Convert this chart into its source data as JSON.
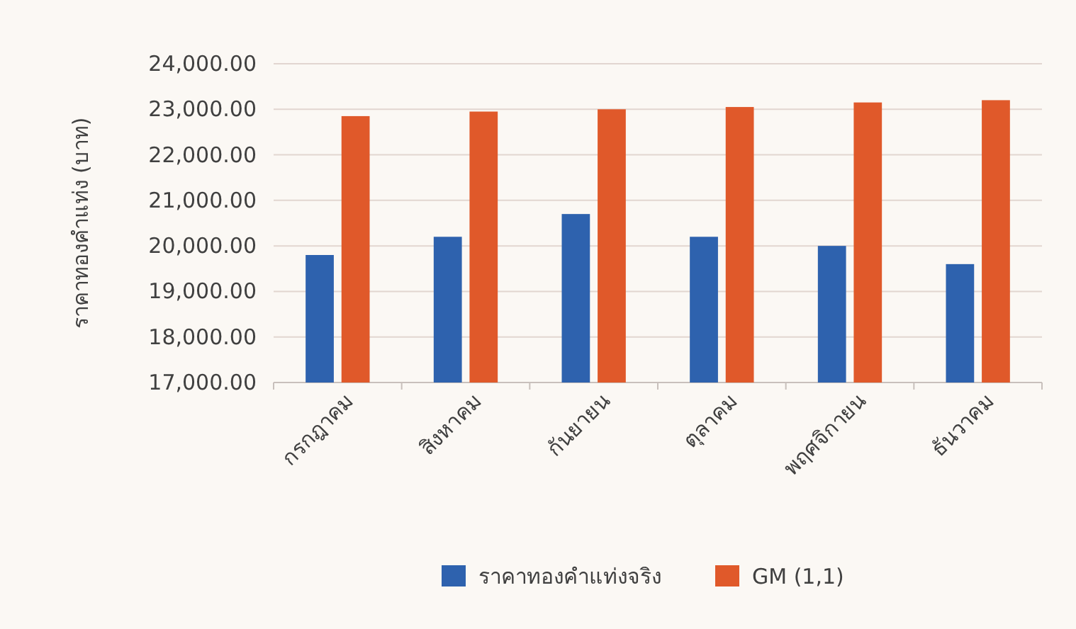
{
  "chart_data": {
    "type": "bar",
    "ylabel": "ราคาทองคำแท่ง (บาท)",
    "categories": [
      "กรกฎาคม",
      "สิงหาคม",
      "กันยายน",
      "ตุลาคม",
      "พฤศจิกายน",
      "ธันวาคม"
    ],
    "series": [
      {
        "name": "ราคาทองคำแท่งจริง",
        "color": "#2e62ae",
        "values": [
          19800,
          20200,
          20700,
          20200,
          20000,
          19600
        ]
      },
      {
        "name": "GM (1,1)",
        "color": "#e0592a",
        "values": [
          22850,
          22950,
          23000,
          23050,
          23150,
          23200
        ]
      }
    ],
    "ylim": [
      17000,
      24000
    ],
    "yticks": [
      {
        "value": 17000,
        "label": "17,000.00"
      },
      {
        "value": 18000,
        "label": "18,000.00"
      },
      {
        "value": 19000,
        "label": "19,000.00"
      },
      {
        "value": 20000,
        "label": "20,000.00"
      },
      {
        "value": 21000,
        "label": "21,000.00"
      },
      {
        "value": 22000,
        "label": "22,000.00"
      },
      {
        "value": 23000,
        "label": "23,000.00"
      },
      {
        "value": 24000,
        "label": "24,000.00"
      }
    ],
    "grid": "y",
    "legend": "bottom"
  }
}
